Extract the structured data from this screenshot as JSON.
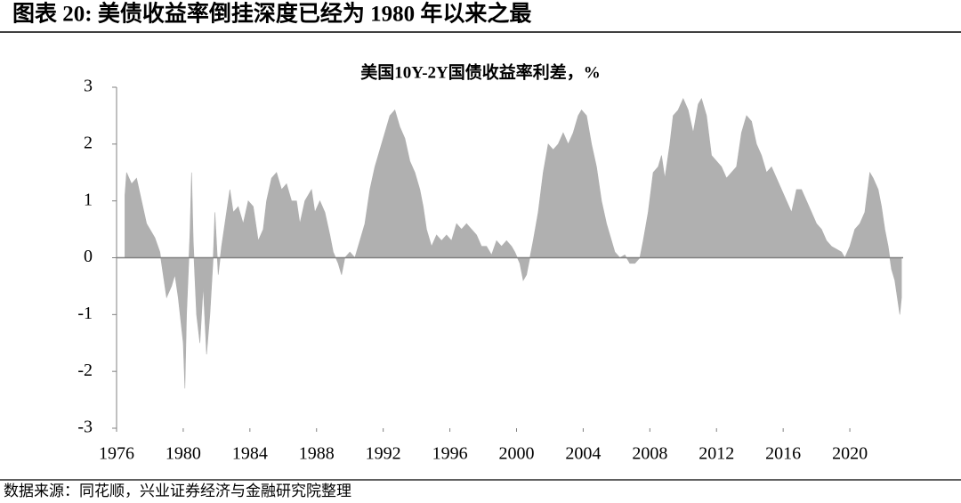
{
  "header": {
    "title": "图表 20:  美债收益率倒挂深度已经为 1980 年以来之最"
  },
  "chart_data": {
    "type": "area",
    "title": "美国10Y-2Y国债收益率利差，%",
    "color": "#b0b0b0",
    "xlim": [
      1976,
      2023.2
    ],
    "ylim": [
      -3,
      3
    ],
    "xticks": [
      1976,
      1980,
      1984,
      1988,
      1992,
      1996,
      2000,
      2004,
      2008,
      2012,
      2016,
      2020
    ],
    "yticks": [
      -3,
      -2,
      -1,
      0,
      1,
      2,
      3
    ],
    "x": [
      1976.5,
      1976.6,
      1976.9,
      1977.2,
      1977.5,
      1977.8,
      1978.0,
      1978.3,
      1978.6,
      1978.8,
      1979.0,
      1979.3,
      1979.5,
      1979.7,
      1980.0,
      1980.1,
      1980.2,
      1980.4,
      1980.5,
      1980.6,
      1980.8,
      1981.0,
      1981.2,
      1981.4,
      1981.6,
      1981.8,
      1981.9,
      1982.1,
      1982.3,
      1982.6,
      1982.8,
      1983.0,
      1983.3,
      1983.6,
      1983.9,
      1984.2,
      1984.5,
      1984.8,
      1985.0,
      1985.3,
      1985.6,
      1985.9,
      1986.2,
      1986.5,
      1986.8,
      1987.0,
      1987.3,
      1987.7,
      1987.9,
      1988.2,
      1988.5,
      1988.8,
      1989.0,
      1989.3,
      1989.5,
      1989.7,
      1990.0,
      1990.3,
      1990.6,
      1990.9,
      1991.2,
      1991.5,
      1991.8,
      1992.1,
      1992.4,
      1992.7,
      1993.0,
      1993.3,
      1993.6,
      1993.9,
      1994.2,
      1994.4,
      1994.6,
      1994.9,
      1995.2,
      1995.5,
      1995.8,
      1996.1,
      1996.4,
      1996.7,
      1997.0,
      1997.3,
      1997.6,
      1997.9,
      1998.2,
      1998.5,
      1998.8,
      1999.1,
      1999.4,
      1999.7,
      1999.9,
      2000.2,
      2000.4,
      2000.6,
      2000.8,
      2001.0,
      2001.3,
      2001.6,
      2001.9,
      2002.2,
      2002.5,
      2002.8,
      2003.1,
      2003.4,
      2003.7,
      2003.9,
      2004.2,
      2004.5,
      2004.8,
      2005.1,
      2005.4,
      2005.7,
      2005.9,
      2006.2,
      2006.5,
      2006.8,
      2007.1,
      2007.4,
      2007.6,
      2007.9,
      2008.2,
      2008.5,
      2008.7,
      2008.9,
      2009.2,
      2009.4,
      2009.7,
      2010.0,
      2010.3,
      2010.6,
      2010.9,
      2011.1,
      2011.4,
      2011.7,
      2012.0,
      2012.3,
      2012.6,
      2012.9,
      2013.2,
      2013.5,
      2013.8,
      2014.1,
      2014.4,
      2014.7,
      2015.0,
      2015.3,
      2015.6,
      2015.9,
      2016.2,
      2016.5,
      2016.8,
      2017.1,
      2017.4,
      2017.7,
      2018.0,
      2018.3,
      2018.6,
      2018.9,
      2019.2,
      2019.5,
      2019.7,
      2020.0,
      2020.3,
      2020.6,
      2020.9,
      2021.2,
      2021.4,
      2021.7,
      2021.9,
      2022.1,
      2022.3,
      2022.5,
      2022.7,
      2022.9,
      2023.0,
      2023.1
    ],
    "values": [
      1.1,
      1.5,
      1.3,
      1.4,
      1.0,
      0.6,
      0.5,
      0.35,
      0.1,
      -0.3,
      -0.7,
      -0.5,
      -0.3,
      -0.7,
      -1.5,
      -2.3,
      -1.0,
      0.4,
      1.5,
      0.3,
      -1.0,
      -1.5,
      -0.5,
      -1.7,
      -1.0,
      0.0,
      0.8,
      -0.3,
      0.2,
      0.8,
      1.2,
      0.8,
      0.9,
      0.6,
      1.0,
      0.9,
      0.3,
      0.5,
      1.0,
      1.4,
      1.5,
      1.2,
      1.3,
      1.0,
      1.0,
      0.6,
      1.0,
      1.2,
      0.8,
      1.0,
      0.8,
      0.4,
      0.1,
      -0.1,
      -0.3,
      0.0,
      0.1,
      0.0,
      0.3,
      0.6,
      1.2,
      1.6,
      1.9,
      2.2,
      2.5,
      2.6,
      2.3,
      2.1,
      1.7,
      1.5,
      1.2,
      0.9,
      0.5,
      0.2,
      0.4,
      0.3,
      0.4,
      0.3,
      0.6,
      0.5,
      0.6,
      0.5,
      0.4,
      0.2,
      0.2,
      0.05,
      0.3,
      0.2,
      0.3,
      0.2,
      0.1,
      -0.1,
      -0.4,
      -0.3,
      0.0,
      0.3,
      0.8,
      1.5,
      2.0,
      1.9,
      2.0,
      2.2,
      2.0,
      2.2,
      2.5,
      2.6,
      2.5,
      2.0,
      1.6,
      1.0,
      0.6,
      0.3,
      0.1,
      0.0,
      0.05,
      -0.1,
      -0.1,
      0.0,
      0.3,
      0.8,
      1.5,
      1.6,
      1.8,
      1.4,
      2.0,
      2.5,
      2.6,
      2.8,
      2.6,
      2.2,
      2.7,
      2.8,
      2.5,
      1.8,
      1.7,
      1.6,
      1.4,
      1.5,
      1.6,
      2.2,
      2.5,
      2.4,
      2.0,
      1.8,
      1.5,
      1.6,
      1.4,
      1.2,
      1.0,
      0.8,
      1.2,
      1.2,
      1.0,
      0.8,
      0.6,
      0.5,
      0.3,
      0.2,
      0.15,
      0.1,
      0.0,
      0.2,
      0.5,
      0.6,
      0.8,
      1.5,
      1.4,
      1.2,
      0.9,
      0.5,
      0.2,
      -0.2,
      -0.4,
      -0.8,
      -1.0,
      -0.7
    ]
  },
  "footer": {
    "source": "数据来源：同花顺，兴业证券经济与金融研究院整理"
  }
}
